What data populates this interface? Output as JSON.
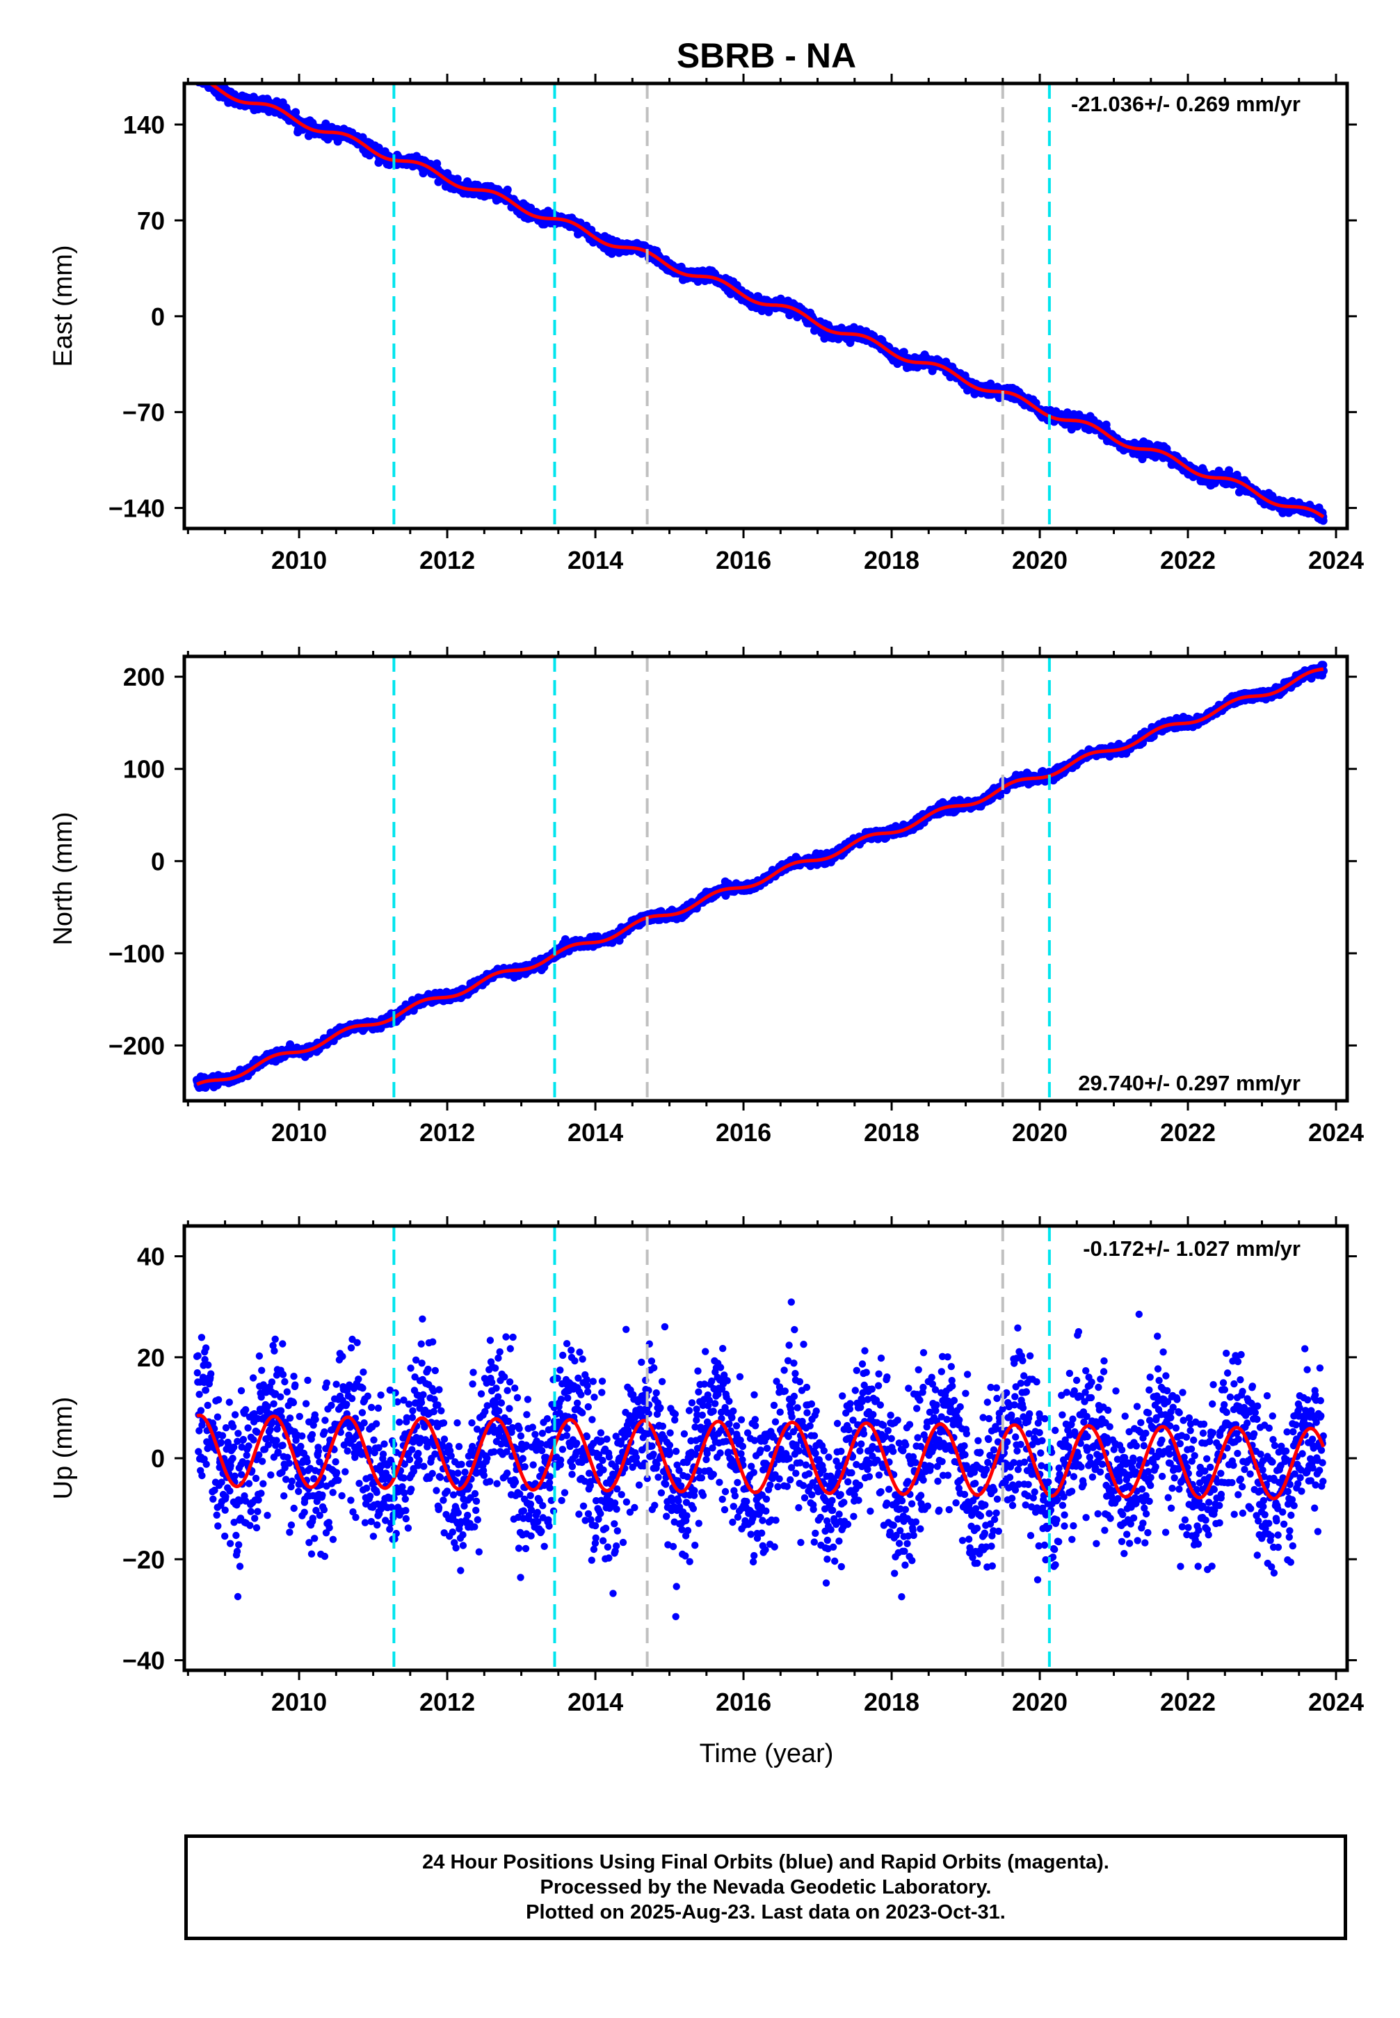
{
  "title": "SBRB - NA",
  "xlabel": "Time (year)",
  "colors": {
    "data_points": "#0000ff",
    "model_curve": "#ff0000",
    "cyan_marker": "#00e5ee",
    "gray_marker": "#c0c0c0",
    "frame": "#000000"
  },
  "chart_data": [
    {
      "type": "scatter",
      "panel": "east",
      "ylabel": "East (mm)",
      "rate_label": "-21.036+/- 0.269 mm/yr",
      "xlim": [
        2008.45,
        2024.15
      ],
      "ylim": [
        -155,
        170
      ],
      "xticks": [
        2010,
        2012,
        2014,
        2016,
        2018,
        2020,
        2022,
        2024
      ],
      "xtick_labels": [
        "2010",
        "2012",
        "2014",
        "2016",
        "2018",
        "2020",
        "2022",
        "2024"
      ],
      "yticks": [
        -140,
        -70,
        0,
        70,
        140
      ],
      "ytick_labels": [
        "−140",
        "−70",
        "0",
        "70",
        "140"
      ],
      "trend": {
        "t0": 2008.62,
        "y0": 172,
        "rate": -21.036,
        "t_ref": 2008.62
      },
      "seasonal_amp": 3,
      "noise_sd": 2.2,
      "series": [
        {
          "name": "",
          "x_range": [
            2008.62,
            2023.83
          ]
        }
      ],
      "cyan_lines": [
        2011.28,
        2013.45,
        2020.13
      ],
      "gray_lines": [
        2014.7,
        2019.5
      ]
    },
    {
      "type": "scatter",
      "panel": "north",
      "ylabel": "North (mm)",
      "rate_label": "29.740+/- 0.297 mm/yr",
      "xlim": [
        2008.45,
        2024.15
      ],
      "ylim": [
        -260,
        222
      ],
      "xticks": [
        2010,
        2012,
        2014,
        2016,
        2018,
        2020,
        2022,
        2024
      ],
      "xtick_labels": [
        "2010",
        "2012",
        "2014",
        "2016",
        "2018",
        "2020",
        "2022",
        "2024"
      ],
      "yticks": [
        -200,
        -100,
        0,
        100,
        200
      ],
      "ytick_labels": [
        "−200",
        "−100",
        "0",
        "100",
        "200"
      ],
      "trend": {
        "t0": 2008.62,
        "y0": -246,
        "rate": 29.74,
        "t_ref": 2008.62
      },
      "seasonal_amp": 4,
      "noise_sd": 2.5,
      "series": [
        {
          "name": "",
          "x_range": [
            2008.62,
            2023.83
          ]
        }
      ],
      "cyan_lines": [
        2011.28,
        2013.45,
        2020.13
      ],
      "gray_lines": [
        2014.7,
        2019.5
      ]
    },
    {
      "type": "scatter",
      "panel": "up",
      "ylabel": "Up (mm)",
      "rate_label": "-0.172+/- 1.027 mm/yr",
      "xlim": [
        2008.45,
        2024.15
      ],
      "ylim": [
        -42,
        46
      ],
      "xticks": [
        2010,
        2012,
        2014,
        2016,
        2018,
        2020,
        2022,
        2024
      ],
      "xtick_labels": [
        "2010",
        "2012",
        "2014",
        "2016",
        "2018",
        "2020",
        "2022",
        "2024"
      ],
      "yticks": [
        -40,
        -20,
        0,
        20,
        40
      ],
      "ytick_labels": [
        "−40",
        "−20",
        "0",
        "20",
        "40"
      ],
      "trend": {
        "t0": 2008.62,
        "y0": 1.5,
        "rate": -0.172,
        "t_ref": 2008.62
      },
      "seasonal_amp": 7,
      "noise_sd": 7.5,
      "series": [
        {
          "name": "",
          "x_range": [
            2008.62,
            2023.83
          ]
        }
      ],
      "cyan_lines": [
        2011.28,
        2013.45,
        2020.13
      ],
      "gray_lines": [
        2014.7,
        2019.5
      ]
    }
  ],
  "caption": {
    "line1": "24 Hour Positions Using Final Orbits (blue) and Rapid Orbits (magenta).",
    "line2": "Processed by the Nevada Geodetic Laboratory.",
    "line3": "Plotted on 2025-Aug-23. Last data on 2023-Oct-31."
  }
}
